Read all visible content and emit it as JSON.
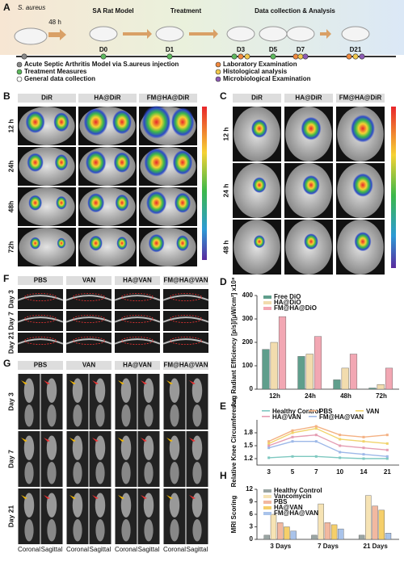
{
  "panels": {
    "A": {
      "label": "A",
      "organism": "S. aureus",
      "delay": "48 h",
      "phases": [
        "SA Rat Model",
        "Treatment",
        "Data collection & Analysis"
      ],
      "days": [
        "D0",
        "D1",
        "D3",
        "D5",
        "D7",
        "D21"
      ],
      "legend": [
        "Acute Septic Arthritis Model via S.aureus injection",
        "Treatment Measures",
        "General data collection",
        "Laboratory Examination",
        "Histological analysis",
        "Microbiological Examination"
      ]
    },
    "B": {
      "label": "B",
      "columns": [
        "DiR",
        "HA@DiR",
        "FM@HA@DiR"
      ],
      "rows": [
        "12 h",
        "24h",
        "48h",
        "72h"
      ]
    },
    "C": {
      "label": "C",
      "columns": [
        "DiR",
        "HA@DiR",
        "FM@HA@DiR"
      ],
      "rows": [
        "12 h",
        "24 h",
        "48 h"
      ]
    },
    "F": {
      "label": "F",
      "columns": [
        "PBS",
        "VAN",
        "HA@VAN",
        "FM@HA@VAN"
      ],
      "rows": [
        "Day 3",
        "Day 7",
        "Day 21"
      ]
    },
    "G": {
      "label": "G",
      "columns": [
        "PBS",
        "VAN",
        "HA@VAN",
        "FM@HA@VAN"
      ],
      "rows": [
        "Day 3",
        "Day 7",
        "Day 21"
      ],
      "views": [
        "Coronal",
        "Sagittal"
      ]
    }
  },
  "chart_data": [
    {
      "type": "bar",
      "label": "D",
      "ylabel": "Avg Radiant Efficiency [p/s]/[μW/cm²] x10⁸",
      "categories": [
        "12h",
        "24h",
        "48h",
        "72h"
      ],
      "series": [
        {
          "name": "Free DiO",
          "color": "#5f9e8c",
          "values": [
            170,
            140,
            40,
            5
          ]
        },
        {
          "name": "HA@DiO",
          "color": "#f2dcae",
          "values": [
            200,
            150,
            90,
            20
          ]
        },
        {
          "name": "FM@HA@DiO",
          "color": "#f2a7b3",
          "values": [
            310,
            225,
            150,
            90
          ]
        }
      ],
      "ylim": [
        0,
        400
      ],
      "yticks": [
        0,
        100,
        200,
        300,
        400
      ]
    },
    {
      "type": "line",
      "label": "E",
      "ylabel": "Relative Knee Circumference",
      "categories": [
        "3",
        "5",
        "7",
        "10",
        "14",
        "21"
      ],
      "series": [
        {
          "name": "Healthy Control",
          "color": "#7ec8c0",
          "values": [
            1.22,
            1.25,
            1.25,
            1.22,
            1.2,
            1.2
          ]
        },
        {
          "name": "PBS",
          "color": "#f4b183",
          "values": [
            1.6,
            1.85,
            1.95,
            1.75,
            1.7,
            1.75
          ]
        },
        {
          "name": "VAN",
          "color": "#f1d36b",
          "values": [
            1.55,
            1.8,
            1.9,
            1.65,
            1.6,
            1.55
          ]
        },
        {
          "name": "HA@VAN",
          "color": "#e59db2",
          "values": [
            1.5,
            1.7,
            1.75,
            1.5,
            1.45,
            1.4
          ]
        },
        {
          "name": "FM@HA@VAN",
          "color": "#9db8e8",
          "values": [
            1.45,
            1.6,
            1.6,
            1.35,
            1.3,
            1.25
          ]
        }
      ],
      "ylim": [
        1.05,
        2.1
      ],
      "yticks": [
        1.2,
        1.5,
        1.8
      ]
    },
    {
      "type": "bar",
      "label": "H",
      "ylabel": "MRI Scoring",
      "categories": [
        "3 Days",
        "7 Days",
        "21 Days"
      ],
      "series": [
        {
          "name": "Healthy Control",
          "color": "#9aa5a3",
          "values": [
            1,
            1,
            1
          ]
        },
        {
          "name": "Vancomycin",
          "color": "#f6e3b4",
          "values": [
            6,
            8.5,
            10.5
          ]
        },
        {
          "name": "PBS",
          "color": "#f2b8a0",
          "values": [
            4,
            4,
            8
          ]
        },
        {
          "name": "HA@VAN",
          "color": "#f5cf6a",
          "values": [
            3,
            3.5,
            7
          ]
        },
        {
          "name": "FM@HA@VAN",
          "color": "#a9c3ea",
          "values": [
            2,
            2.5,
            1.5
          ]
        }
      ],
      "ylim": [
        0,
        12
      ],
      "yticks": [
        0,
        3,
        6,
        9,
        12
      ]
    }
  ]
}
